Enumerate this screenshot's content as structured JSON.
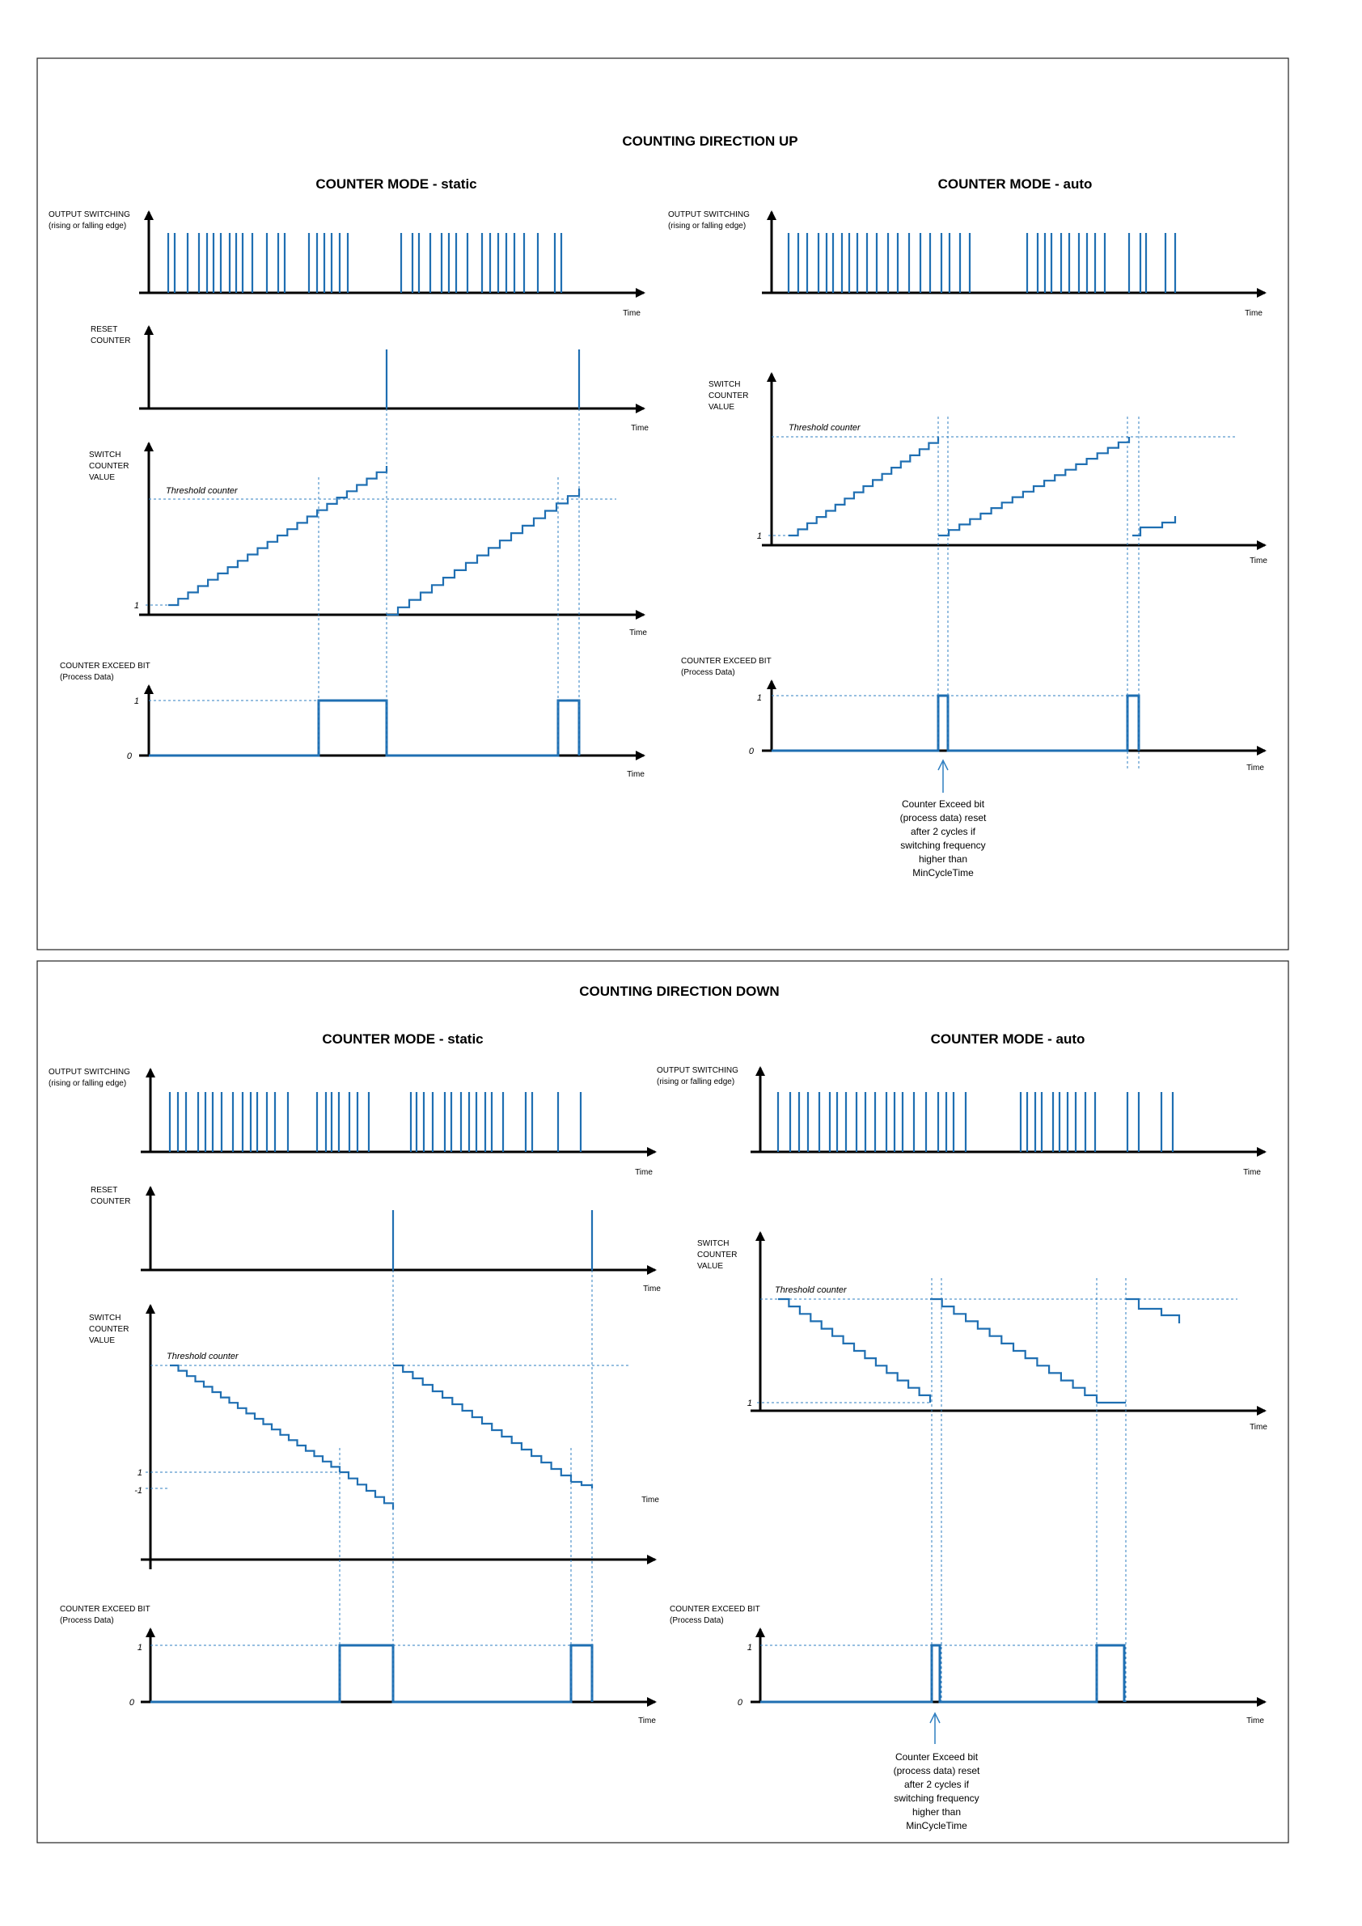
{
  "colors": {
    "signal": "#1f6fb2",
    "axis": "#000000",
    "guide": "#2f7fc1"
  },
  "up": {
    "title": "COUNTING DIRECTION UP",
    "static": {
      "mode_title": "COUNTER MODE - static",
      "output_label": [
        "OUTPUT SWITCHING",
        "(rising or falling edge)"
      ],
      "reset_label": [
        "RESET",
        "COUNTER"
      ],
      "value_label": [
        "SWITCH",
        "COUNTER",
        "VALUE"
      ],
      "exceed_label": [
        "COUNTER EXCEED BIT",
        "(Process Data)"
      ],
      "threshold_label": "Threshold counter",
      "tick_one": "1",
      "tick_zero": "0",
      "time_label": "Time"
    },
    "auto": {
      "mode_title": "COUNTER MODE - auto",
      "output_label": [
        "OUTPUT SWITCHING",
        "(rising or falling edge)"
      ],
      "value_label": [
        "SWITCH",
        "COUNTER",
        "VALUE"
      ],
      "exceed_label": [
        "COUNTER EXCEED BIT",
        "(Process Data)"
      ],
      "threshold_label": "Threshold counter",
      "tick_one": "1",
      "tick_zero": "0",
      "time_label": "Time",
      "annotation": [
        "Counter Exceed bit",
        "(process data) reset",
        "after 2 cycles if",
        "switching frequency",
        "higher than",
        "MinCycleTime"
      ]
    }
  },
  "down": {
    "title": "COUNTING DIRECTION DOWN",
    "static": {
      "mode_title": "COUNTER MODE - static",
      "output_label": [
        "OUTPUT SWITCHING",
        "(rising or falling edge)"
      ],
      "reset_label": [
        "RESET",
        "COUNTER"
      ],
      "value_label": [
        "SWITCH",
        "COUNTER",
        "VALUE"
      ],
      "exceed_label": [
        "COUNTER EXCEED BIT",
        "(Process Data)"
      ],
      "threshold_label": "Threshold counter",
      "tick_one": "1",
      "tick_minus_one": "-1",
      "tick_zero": "0",
      "time_label": "Time"
    },
    "auto": {
      "mode_title": "COUNTER MODE - auto",
      "output_label": [
        "OUTPUT SWITCHING",
        "(rising or falling edge)"
      ],
      "value_label": [
        "SWITCH",
        "COUNTER",
        "VALUE"
      ],
      "exceed_label": [
        "COUNTER EXCEED BIT",
        "(Process Data)"
      ],
      "threshold_label": "Threshold counter",
      "tick_one": "1",
      "tick_zero": "0",
      "time_label": "Time",
      "annotation": [
        "Counter Exceed bit",
        "(process data) reset",
        "after 2 cycles if",
        "switching frequency",
        "higher than",
        "MinCycleTime"
      ]
    }
  }
}
